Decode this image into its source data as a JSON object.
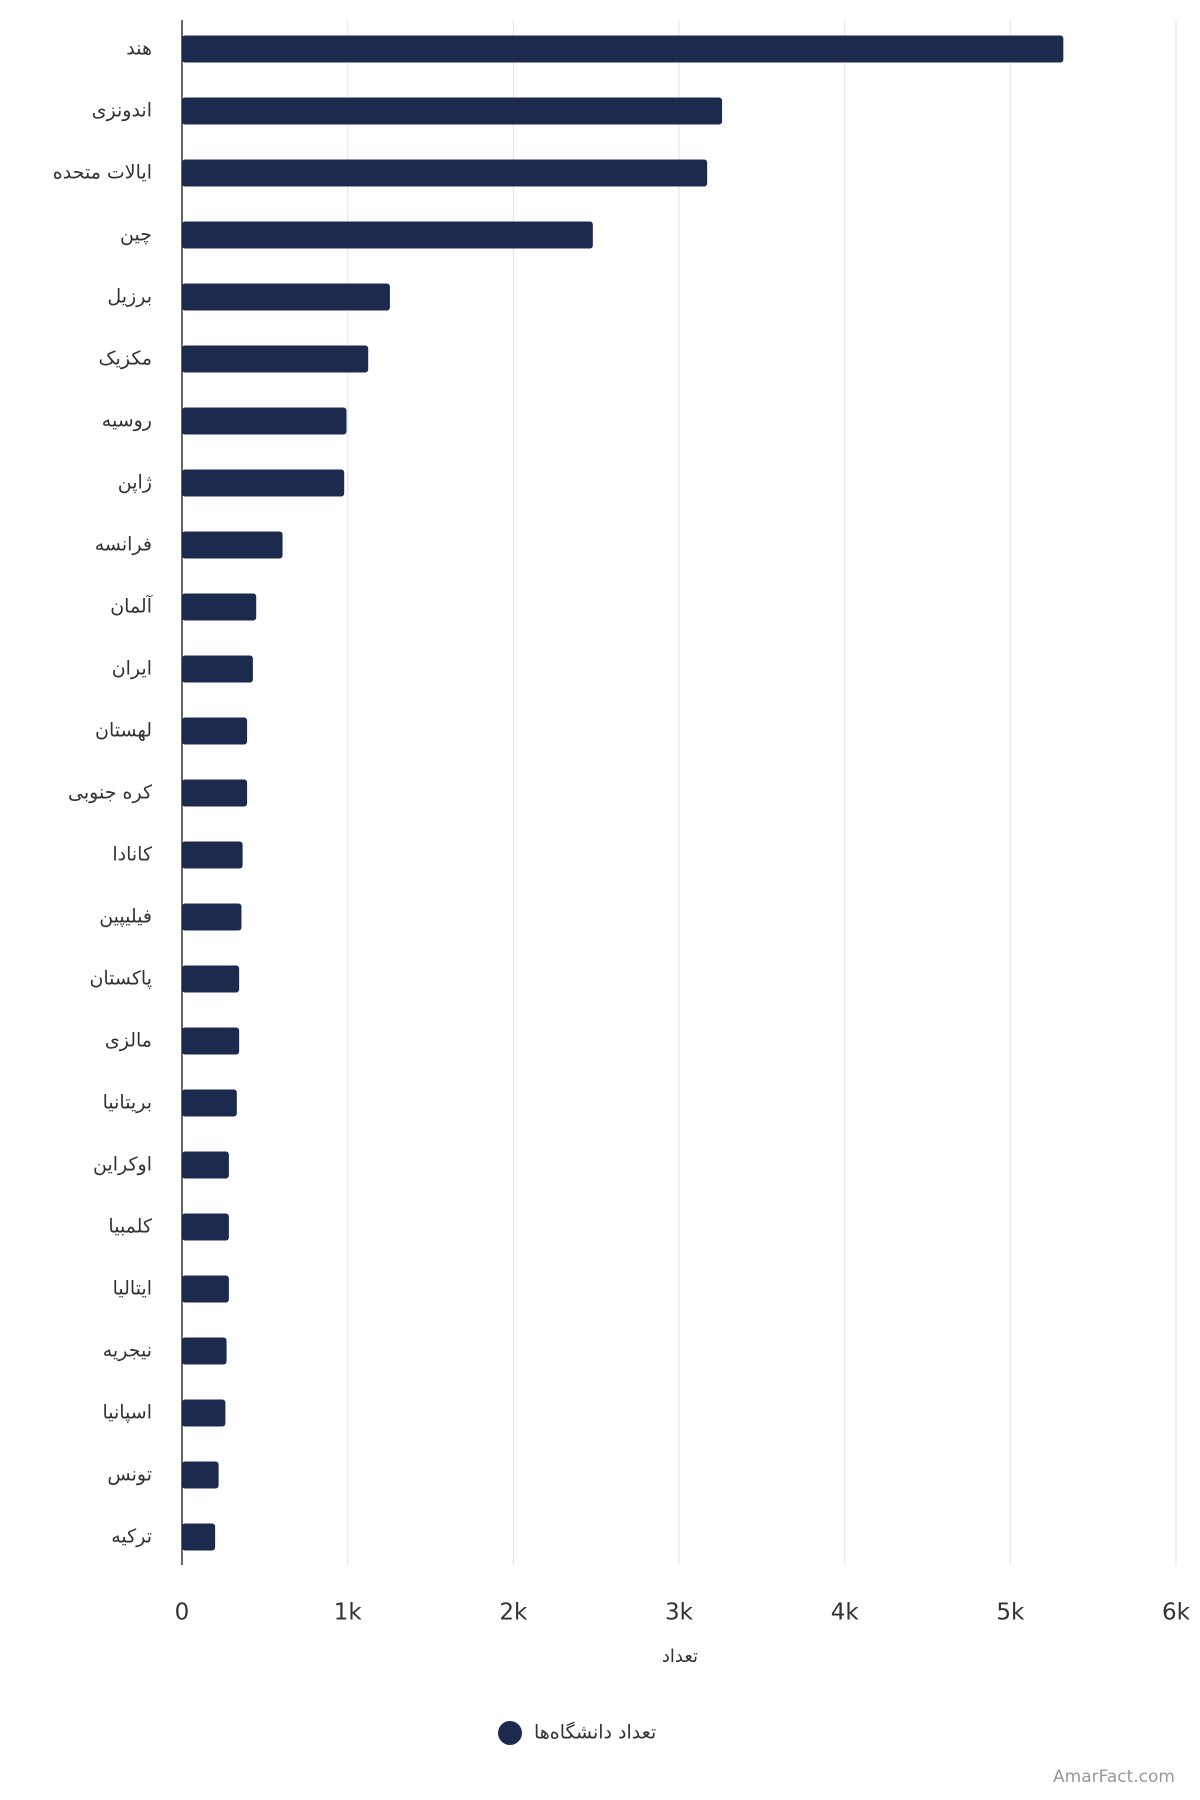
{
  "chart_data": {
    "type": "barh",
    "categories": [
      "هند",
      "اندونزی",
      "ایالات متحده",
      "چین",
      "برزیل",
      "مکزیک",
      "روسیه",
      "ژاپن",
      "فرانسه",
      "آلمان",
      "ایران",
      "لهستان",
      "کره جنوبی",
      "کانادا",
      "فیلیپین",
      "پاکستان",
      "مالزی",
      "بریتانیا",
      "اوکراین",
      "کلمبیا",
      "ایتالیا",
      "نیجریه",
      "اسپانیا",
      "تونس",
      "ترکیه"
    ],
    "series": [
      {
        "name": "تعداد دانشگاه‌ها",
        "color": "#1c2a4e",
        "values": [
          5320,
          3260,
          3170,
          2480,
          1255,
          1124,
          993,
          979,
          607,
          448,
          428,
          393,
          393,
          366,
          359,
          345,
          345,
          331,
          283,
          283,
          283,
          269,
          262,
          221,
          200
        ]
      }
    ],
    "xlabel": "تعداد",
    "xlim": [
      0,
      6000
    ],
    "xticks": [
      0,
      {
        "value": 1000,
        "label": "1k"
      },
      {
        "value": 2000,
        "label": "2k"
      },
      {
        "value": 3000,
        "label": "3k"
      },
      {
        "value": 4000,
        "label": "4k"
      },
      {
        "value": 5000,
        "label": "5k"
      },
      {
        "value": 6000,
        "label": "6k"
      }
    ],
    "grid": true,
    "legend": "bottom",
    "watermark": "AmarFact.com"
  }
}
